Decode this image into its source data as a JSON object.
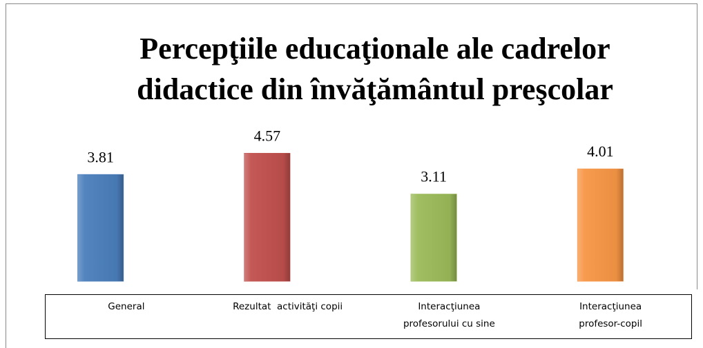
{
  "chart_data": {
    "type": "bar",
    "title": "Percepţiile educaţionale ale cadrelor\ndidactice din învăţământul preşcolar",
    "categories": [
      "General",
      "Rezultat  activităţi copii",
      "Interacţiunea\nprofesorului cu sine",
      "Interacţiunea\nprofesor-copil"
    ],
    "values": [
      3.81,
      4.57,
      3.11,
      4.01
    ],
    "colors": [
      "#4a7ebb",
      "#c0504d",
      "#9bbb59",
      "#f79646"
    ],
    "ylim": [
      0,
      5
    ]
  }
}
